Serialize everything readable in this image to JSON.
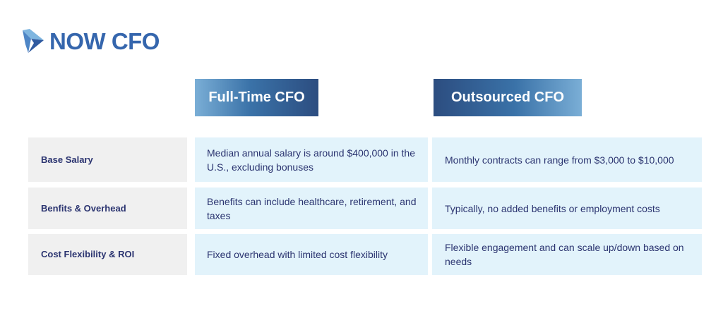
{
  "logo": {
    "text": "NOW CFO"
  },
  "headers": [
    "Full-Time CFO",
    "Outsourced CFO"
  ],
  "rows": [
    {
      "label": "Base Salary",
      "full_time": "Median annual salary is  around $400,000 in the U.S., excluding bonuses",
      "outsourced": "Monthly contracts can range from $3,000 to $10,000"
    },
    {
      "label": "Benfits & Overhead",
      "full_time": "Benefits can include healthcare, retirement, and taxes",
      "outsourced": "Typically, no added benefits or employment costs"
    },
    {
      "label": "Cost Flexibility & ROI",
      "full_time": "Fixed overhead with limited cost flexibility",
      "outsourced": "Flexible engagement and can scale up/down based on needs"
    }
  ]
}
